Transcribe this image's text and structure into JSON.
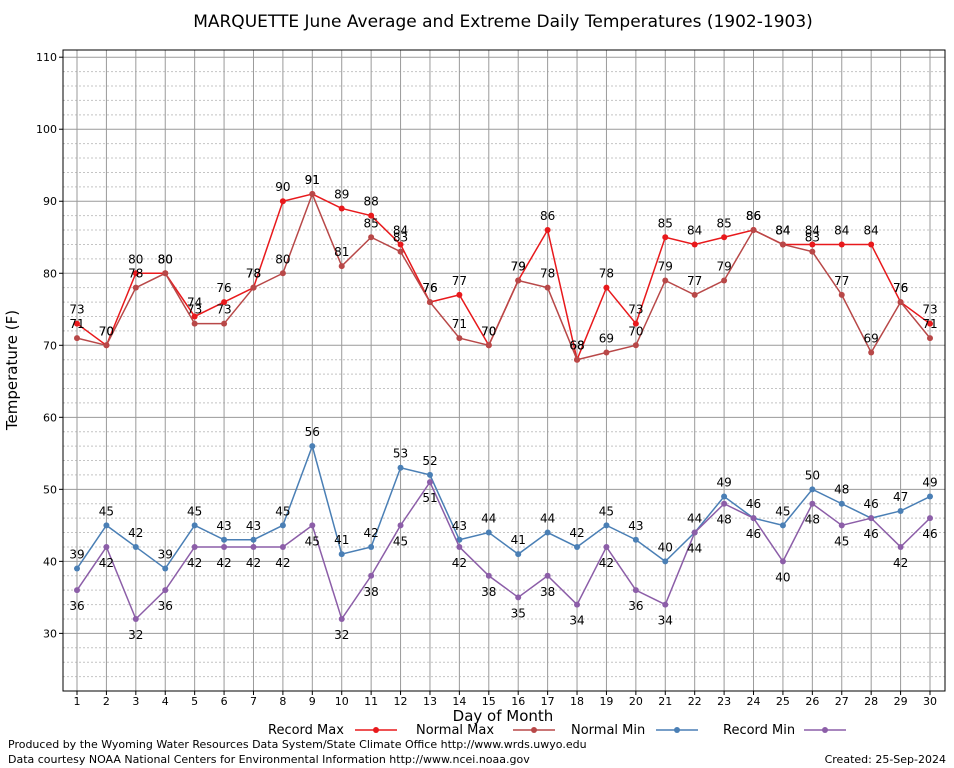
{
  "chart_data": {
    "type": "line",
    "title": "MARQUETTE June Average and Extreme Daily Temperatures (1902-1903)",
    "xlabel": "Day of Month",
    "ylabel": "Temperature (F)",
    "ylim": [
      22,
      111
    ],
    "yticks": [
      30,
      40,
      50,
      60,
      70,
      80,
      90,
      100,
      110
    ],
    "x": [
      1,
      2,
      3,
      4,
      5,
      6,
      7,
      8,
      9,
      10,
      11,
      12,
      13,
      14,
      15,
      16,
      17,
      18,
      19,
      20,
      21,
      22,
      23,
      24,
      25,
      26,
      27,
      28,
      29,
      30
    ],
    "grid": true,
    "legend_position": "bottom",
    "series": [
      {
        "name": "Record Max",
        "color": "#e8191c",
        "values": [
          73,
          70,
          80,
          80,
          74,
          76,
          78,
          90,
          91,
          89,
          88,
          84,
          76,
          77,
          70,
          79,
          86,
          68,
          78,
          73,
          85,
          84,
          85,
          86,
          84,
          84,
          84,
          84,
          76,
          73
        ]
      },
      {
        "name": "Normal Max",
        "color": "#b84848",
        "values": [
          71,
          70,
          78,
          80,
          73,
          73,
          78,
          80,
          91,
          81,
          85,
          83,
          76,
          71,
          70,
          79,
          78,
          68,
          69,
          70,
          79,
          77,
          79,
          86,
          84,
          83,
          77,
          69,
          76,
          71
        ]
      },
      {
        "name": "Normal Min",
        "color": "#4a7fb5",
        "values": [
          39,
          45,
          42,
          39,
          45,
          43,
          43,
          45,
          56,
          41,
          42,
          53,
          52,
          43,
          44,
          41,
          44,
          42,
          45,
          43,
          40,
          44,
          49,
          46,
          45,
          50,
          48,
          46,
          47,
          49
        ]
      },
      {
        "name": "Record Min",
        "color": "#8c5ea8",
        "values": [
          36,
          42,
          32,
          36,
          42,
          42,
          42,
          42,
          45,
          32,
          38,
          45,
          51,
          42,
          38,
          35,
          38,
          34,
          42,
          36,
          34,
          44,
          48,
          46,
          40,
          48,
          45,
          46,
          42,
          46
        ]
      }
    ]
  },
  "footer": {
    "produced_by": "Produced by the Wyoming Water Resources Data System/State Climate Office http://www.wrds.uwyo.edu",
    "data_courtesy": "Data courtesy NOAA National Centers for Environmental Information http://www.ncei.noaa.gov",
    "created": "Created:  25-Sep-2024"
  }
}
